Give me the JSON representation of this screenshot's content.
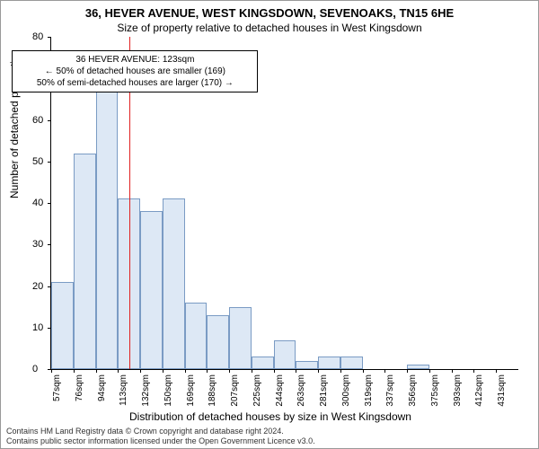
{
  "title": "36, HEVER AVENUE, WEST KINGSDOWN, SEVENOAKS, TN15 6HE",
  "subtitle": "Size of property relative to detached houses in West Kingsdown",
  "ylabel": "Number of detached properties",
  "xlabel": "Distribution of detached houses by size in West Kingsdown",
  "footer_line1": "Contains HM Land Registry data © Crown copyright and database right 2024.",
  "footer_line2": "Contains public sector information licensed under the Open Government Licence v3.0.",
  "chart": {
    "type": "histogram",
    "ylim": [
      0,
      80
    ],
    "ytick_step": 10,
    "bar_color": "#dde8f5",
    "bar_border_color": "#7a9bc4",
    "background_color": "#ffffff",
    "marker_color": "#e02020",
    "marker_x_value": 123,
    "x_start": 57,
    "x_bin_width": 18.7,
    "x_labels": [
      "57sqm",
      "76sqm",
      "94sqm",
      "113sqm",
      "132sqm",
      "150sqm",
      "169sqm",
      "188sqm",
      "207sqm",
      "225sqm",
      "244sqm",
      "263sqm",
      "281sqm",
      "300sqm",
      "319sqm",
      "337sqm",
      "356sqm",
      "375sqm",
      "393sqm",
      "412sqm",
      "431sqm"
    ],
    "values": [
      21,
      52,
      67,
      41,
      38,
      41,
      16,
      13,
      15,
      3,
      7,
      2,
      3,
      3,
      0,
      0,
      1,
      0,
      0,
      0,
      0
    ],
    "title_fontsize": 13,
    "label_fontsize": 12,
    "tick_fontsize": 10
  },
  "annotation": {
    "line1": "36 HEVER AVENUE: 123sqm",
    "line2": "← 50% of detached houses are smaller (169)",
    "line3": "50% of semi-detached houses are larger (170) →"
  }
}
